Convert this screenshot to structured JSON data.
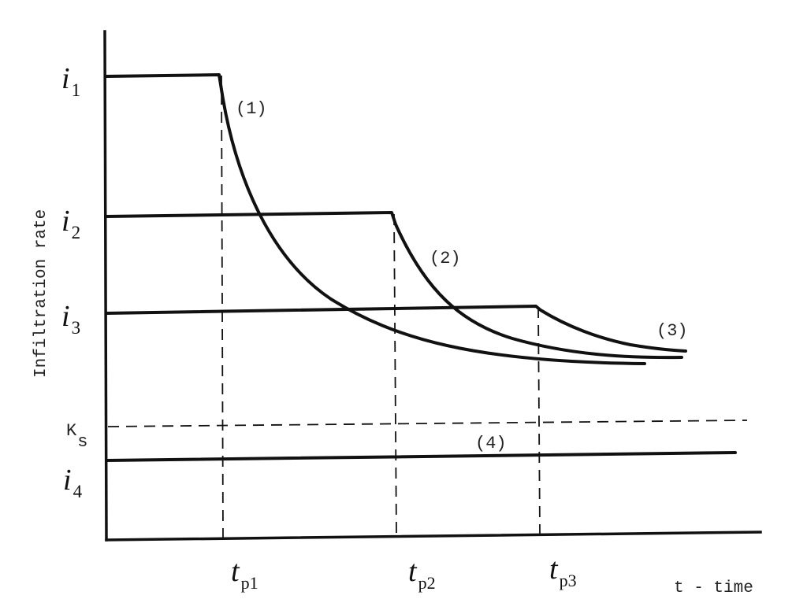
{
  "axes": {
    "y_label": "Infiltration rate",
    "x_label": "t - time"
  },
  "rate_levels": [
    {
      "symbol": "i",
      "subscript": "1"
    },
    {
      "symbol": "i",
      "subscript": "2"
    },
    {
      "symbol": "i",
      "subscript": "3"
    },
    {
      "symbol": "i",
      "subscript": "4"
    }
  ],
  "saturated_conductivity": {
    "symbol": "K",
    "subscript": "s"
  },
  "ponding_times": [
    {
      "symbol": "t",
      "subscript": "p1"
    },
    {
      "symbol": "t",
      "subscript": "p2"
    },
    {
      "symbol": "t",
      "subscript": "p3"
    }
  ],
  "curve_labels": [
    "(1)",
    "(2)",
    "(3)",
    "(4)"
  ],
  "colors": {
    "ink": "#111111",
    "background": "#ffffff"
  }
}
